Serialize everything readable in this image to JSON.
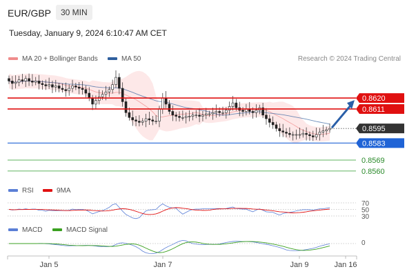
{
  "header": {
    "pair": "EUR/GBP",
    "timeframe": "30 MIN",
    "datetime": "Tuesday, January 9, 2024 6:10:47 AM CET",
    "credit": "Research © 2024 Trading Central"
  },
  "legend": {
    "bollinger": {
      "label": "MA 20 + Bollinger Bands",
      "color": "#f08c8c"
    },
    "ma50": {
      "label": "MA 50",
      "color": "#2f5f9e"
    },
    "rsi": {
      "label": "RSI",
      "color": "#5b7fd6"
    },
    "rsi_ma": {
      "label": "9MA",
      "color": "#e01010"
    },
    "macd": {
      "label": "MACD",
      "color": "#5b7fd6"
    },
    "macd_signal": {
      "label": "MACD Signal",
      "color": "#3aa020"
    }
  },
  "chart_data": {
    "type": "candlestick",
    "price_ylim": [
      0.8552,
      0.8645
    ],
    "levels": [
      {
        "label": "0.8620",
        "value": 0.862,
        "color": "#e01010",
        "style": "resistance"
      },
      {
        "label": "0.8611",
        "value": 0.8611,
        "color": "#e01010",
        "style": "resistance"
      },
      {
        "label": "0.8595",
        "value": 0.8595,
        "color": "#333333",
        "style": "current"
      },
      {
        "label": "0.8583",
        "value": 0.8583,
        "color": "#1f63d6",
        "style": "pivot"
      },
      {
        "label": "0.8569",
        "value": 0.8569,
        "color": "#2a9a2a",
        "style": "support"
      },
      {
        "label": "0.8560",
        "value": 0.856,
        "color": "#2a9a2a",
        "style": "support"
      }
    ],
    "x_ticks": [
      "Jan 5",
      "Jan 7",
      "Jan 9",
      "Jan 16"
    ],
    "close": [
      0.8634,
      0.8632,
      0.8633,
      0.8635,
      0.8634,
      0.8636,
      0.8634,
      0.8633,
      0.8634,
      0.8632,
      0.8631,
      0.863,
      0.8631,
      0.8629,
      0.863,
      0.8628,
      0.8627,
      0.8626,
      0.8628,
      0.863,
      0.8629,
      0.8628,
      0.8627,
      0.8624,
      0.862,
      0.8615,
      0.8618,
      0.8621,
      0.8623,
      0.8625,
      0.8627,
      0.8631,
      0.8637,
      0.8628,
      0.8617,
      0.8608,
      0.8604,
      0.8602,
      0.8601,
      0.86,
      0.8601,
      0.8603,
      0.8602,
      0.8601,
      0.8601,
      0.8611,
      0.862,
      0.8615,
      0.8609,
      0.8606,
      0.8605,
      0.8604,
      0.8604,
      0.8605,
      0.8605,
      0.8606,
      0.8606,
      0.8605,
      0.8606,
      0.8607,
      0.8607,
      0.8608,
      0.8609,
      0.8608,
      0.8608,
      0.861,
      0.8613,
      0.8616,
      0.8612,
      0.861,
      0.8609,
      0.8611,
      0.8609,
      0.8608,
      0.861,
      0.8612,
      0.8606,
      0.8603,
      0.86,
      0.8598,
      0.8595,
      0.8593,
      0.8592,
      0.8591,
      0.859,
      0.859,
      0.859,
      0.859,
      0.8591,
      0.859,
      0.8589,
      0.8588,
      0.859,
      0.8592,
      0.8593,
      0.8594,
      0.8595
    ],
    "macd_ylabel": "0",
    "rsi_levels": [
      {
        "label": "70",
        "value": 70
      },
      {
        "label": "50",
        "value": 50
      },
      {
        "label": "30",
        "value": 30
      }
    ]
  }
}
